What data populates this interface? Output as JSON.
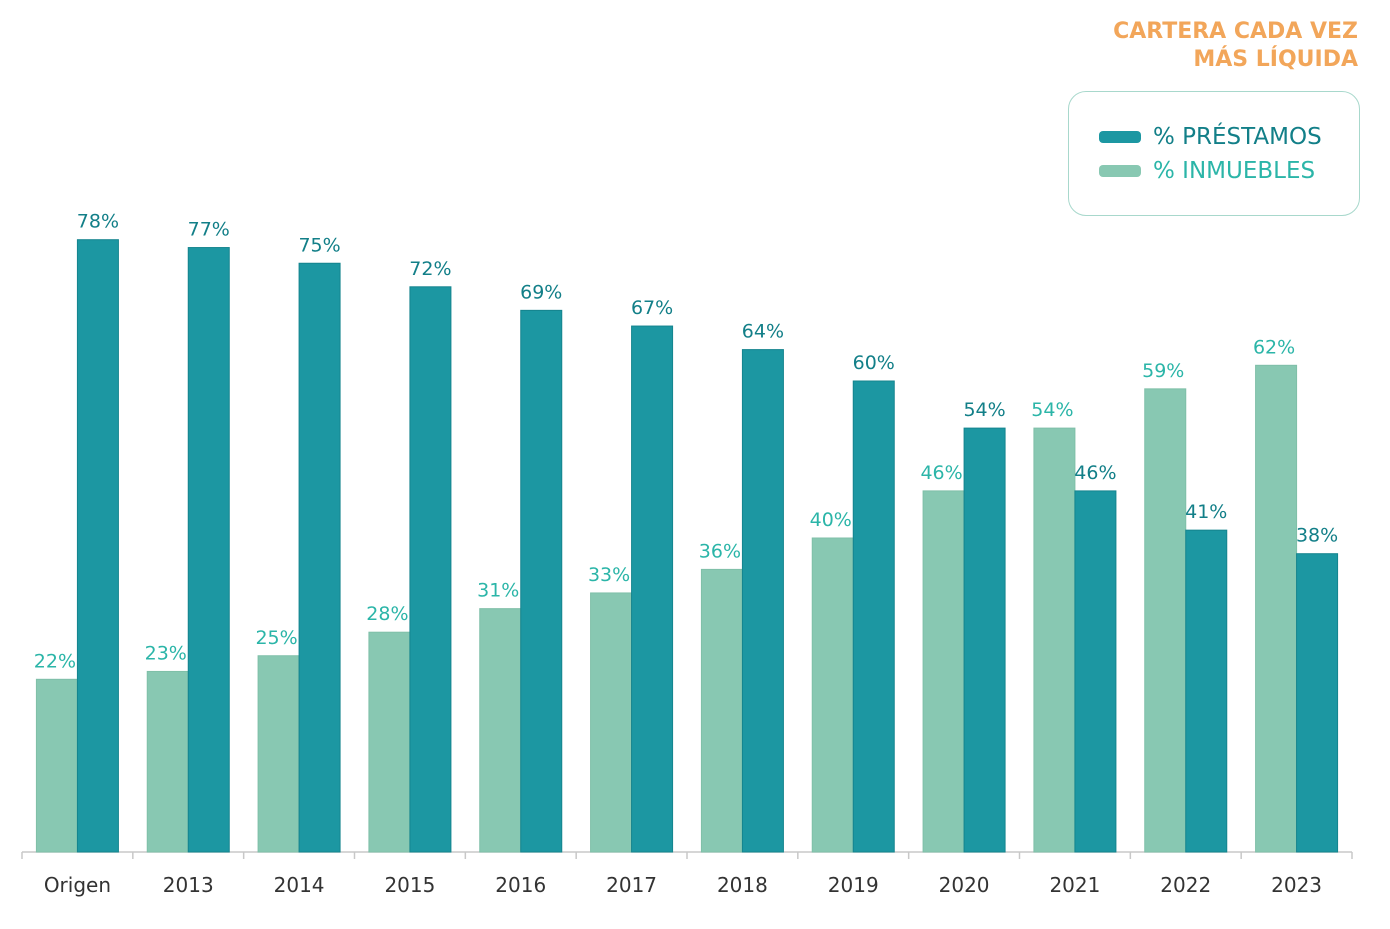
{
  "chart_data": {
    "type": "bar",
    "title_lines": [
      "CARTERA CADA VEZ",
      "MÁS LÍQUIDA"
    ],
    "categories": [
      "Origen",
      "2013",
      "2014",
      "2015",
      "2016",
      "2017",
      "2018",
      "2019",
      "2020",
      "2021",
      "2022",
      "2023"
    ],
    "series": [
      {
        "name": "% INMUEBLES",
        "values": [
          22,
          23,
          25,
          28,
          31,
          33,
          36,
          40,
          46,
          54,
          59,
          62
        ],
        "labels": [
          "22%",
          "23%",
          "25%",
          "28%",
          "31%",
          "33%",
          "36%",
          "40%",
          "46%",
          "54%",
          "59%",
          "62%"
        ],
        "color": "#88c8b2",
        "label_color": "#2bb5a8"
      },
      {
        "name": "% PRÉSTAMOS",
        "values": [
          78,
          77,
          75,
          72,
          69,
          67,
          64,
          60,
          54,
          46,
          41,
          38
        ],
        "labels": [
          "78%",
          "77%",
          "75%",
          "72%",
          "69%",
          "67%",
          "64%",
          "60%",
          "54%",
          "46%",
          "41%",
          "38%"
        ],
        "color": "#1c97a2",
        "label_color": "#127f88"
      }
    ],
    "ylim": [
      0,
      100
    ],
    "grid": false,
    "legend_position": "top-right",
    "legend_order": [
      "% PRÉSTAMOS",
      "% INMUEBLES"
    ]
  }
}
